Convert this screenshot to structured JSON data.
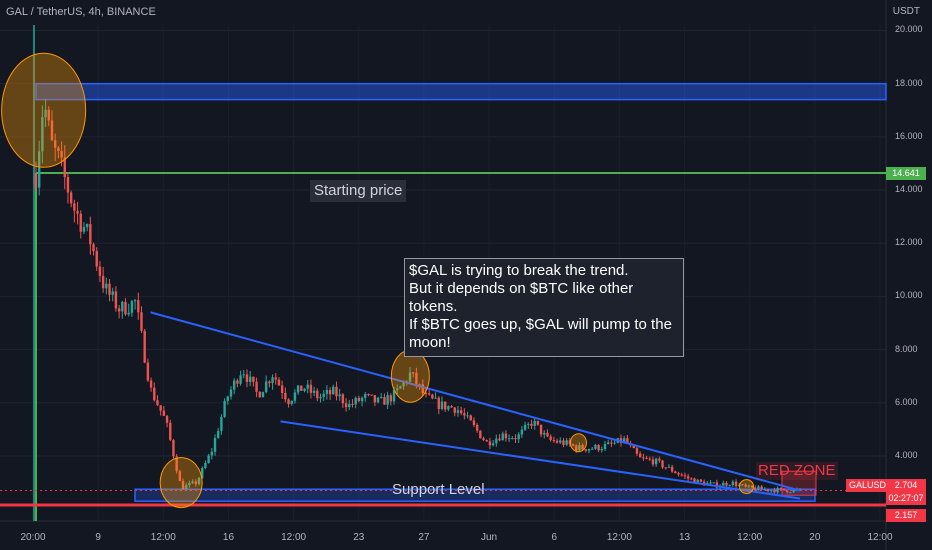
{
  "header": {
    "title": "GAL / TetherUS, 4h, BINANCE",
    "unit": "USDT"
  },
  "annotations": {
    "note_lines": [
      "$GAL is trying to break the trend.",
      "But it depends on $BTC like other tokens.",
      "If $BTC goes up, $GAL will pump to the moon!"
    ],
    "starting_price": "Starting price",
    "support_level": "Support Level",
    "red_zone": "RED ZONE"
  },
  "price_tags": {
    "starting": "14.641",
    "symbol": "GALUSDT",
    "last": "2.704",
    "countdown": "02:27:07",
    "support": "2.157"
  },
  "colors": {
    "background": "#131722",
    "up": "#26a69a",
    "down": "#ef5350",
    "trendline": "#2962ff",
    "support": "#f23645",
    "starting": "#4caf50",
    "highlight": "#ff9800"
  },
  "chart_data": {
    "type": "candlestick",
    "title": "GAL / TetherUS, 4h, BINANCE",
    "ylabel": "USDT",
    "ylim": [
      0,
      21
    ],
    "yticks": [
      "4.000",
      "6.000",
      "8.000",
      "10.000",
      "12.000",
      "14.000",
      "16.000",
      "18.000",
      "20.000"
    ],
    "xticks": [
      "20:00",
      "9",
      "12:00",
      "16",
      "12:00",
      "23",
      "27",
      "Jun",
      "6",
      "12:00",
      "13",
      "12:00",
      "20",
      "12:00"
    ],
    "price_path": [
      [
        0,
        14.6
      ],
      [
        1,
        17.4
      ],
      [
        2,
        15.7
      ],
      [
        3,
        15.1
      ],
      [
        5,
        13.3
      ],
      [
        7,
        12.2
      ],
      [
        9,
        10.3
      ],
      [
        11,
        9.5
      ],
      [
        13,
        9.8
      ],
      [
        15,
        6.5
      ],
      [
        17,
        5.3
      ],
      [
        19,
        2.8
      ],
      [
        21,
        3.0
      ],
      [
        23,
        4.2
      ],
      [
        25,
        6.2
      ],
      [
        27,
        7.3
      ],
      [
        29,
        6.3
      ],
      [
        31,
        7.1
      ],
      [
        33,
        6.1
      ],
      [
        35,
        6.6
      ],
      [
        37,
        6.2
      ],
      [
        39,
        6.4
      ],
      [
        41,
        5.9
      ],
      [
        43,
        6.2
      ],
      [
        45,
        6.0
      ],
      [
        47,
        6.3
      ],
      [
        49,
        7.1
      ],
      [
        51,
        6.2
      ],
      [
        53,
        5.9
      ],
      [
        55,
        5.8
      ],
      [
        57,
        5.2
      ],
      [
        59,
        4.5
      ],
      [
        61,
        4.8
      ],
      [
        63,
        4.7
      ],
      [
        65,
        5.3
      ],
      [
        67,
        4.6
      ],
      [
        69,
        4.5
      ],
      [
        71,
        4.3
      ],
      [
        73,
        4.3
      ],
      [
        75,
        4.4
      ],
      [
        77,
        4.6
      ],
      [
        79,
        3.9
      ],
      [
        81,
        3.8
      ],
      [
        83,
        3.5
      ],
      [
        85,
        3.2
      ],
      [
        87,
        3.0
      ],
      [
        89,
        2.9
      ],
      [
        91,
        3.0
      ],
      [
        93,
        2.8
      ],
      [
        95,
        2.75
      ],
      [
        97,
        2.72
      ],
      [
        99,
        2.704
      ]
    ],
    "levels": {
      "starting_price": 14.641,
      "resistance_zone": [
        17.4,
        18.0
      ],
      "support_zone": [
        2.3,
        2.75
      ],
      "support_line": 2.157,
      "last_price": 2.704
    },
    "trendlines": [
      {
        "name": "upper",
        "from": [
          15,
          9.4
        ],
        "to": [
          100,
          2.7
        ]
      },
      {
        "name": "lower",
        "from": [
          32,
          5.3
        ],
        "to": [
          100,
          2.4
        ]
      }
    ]
  }
}
